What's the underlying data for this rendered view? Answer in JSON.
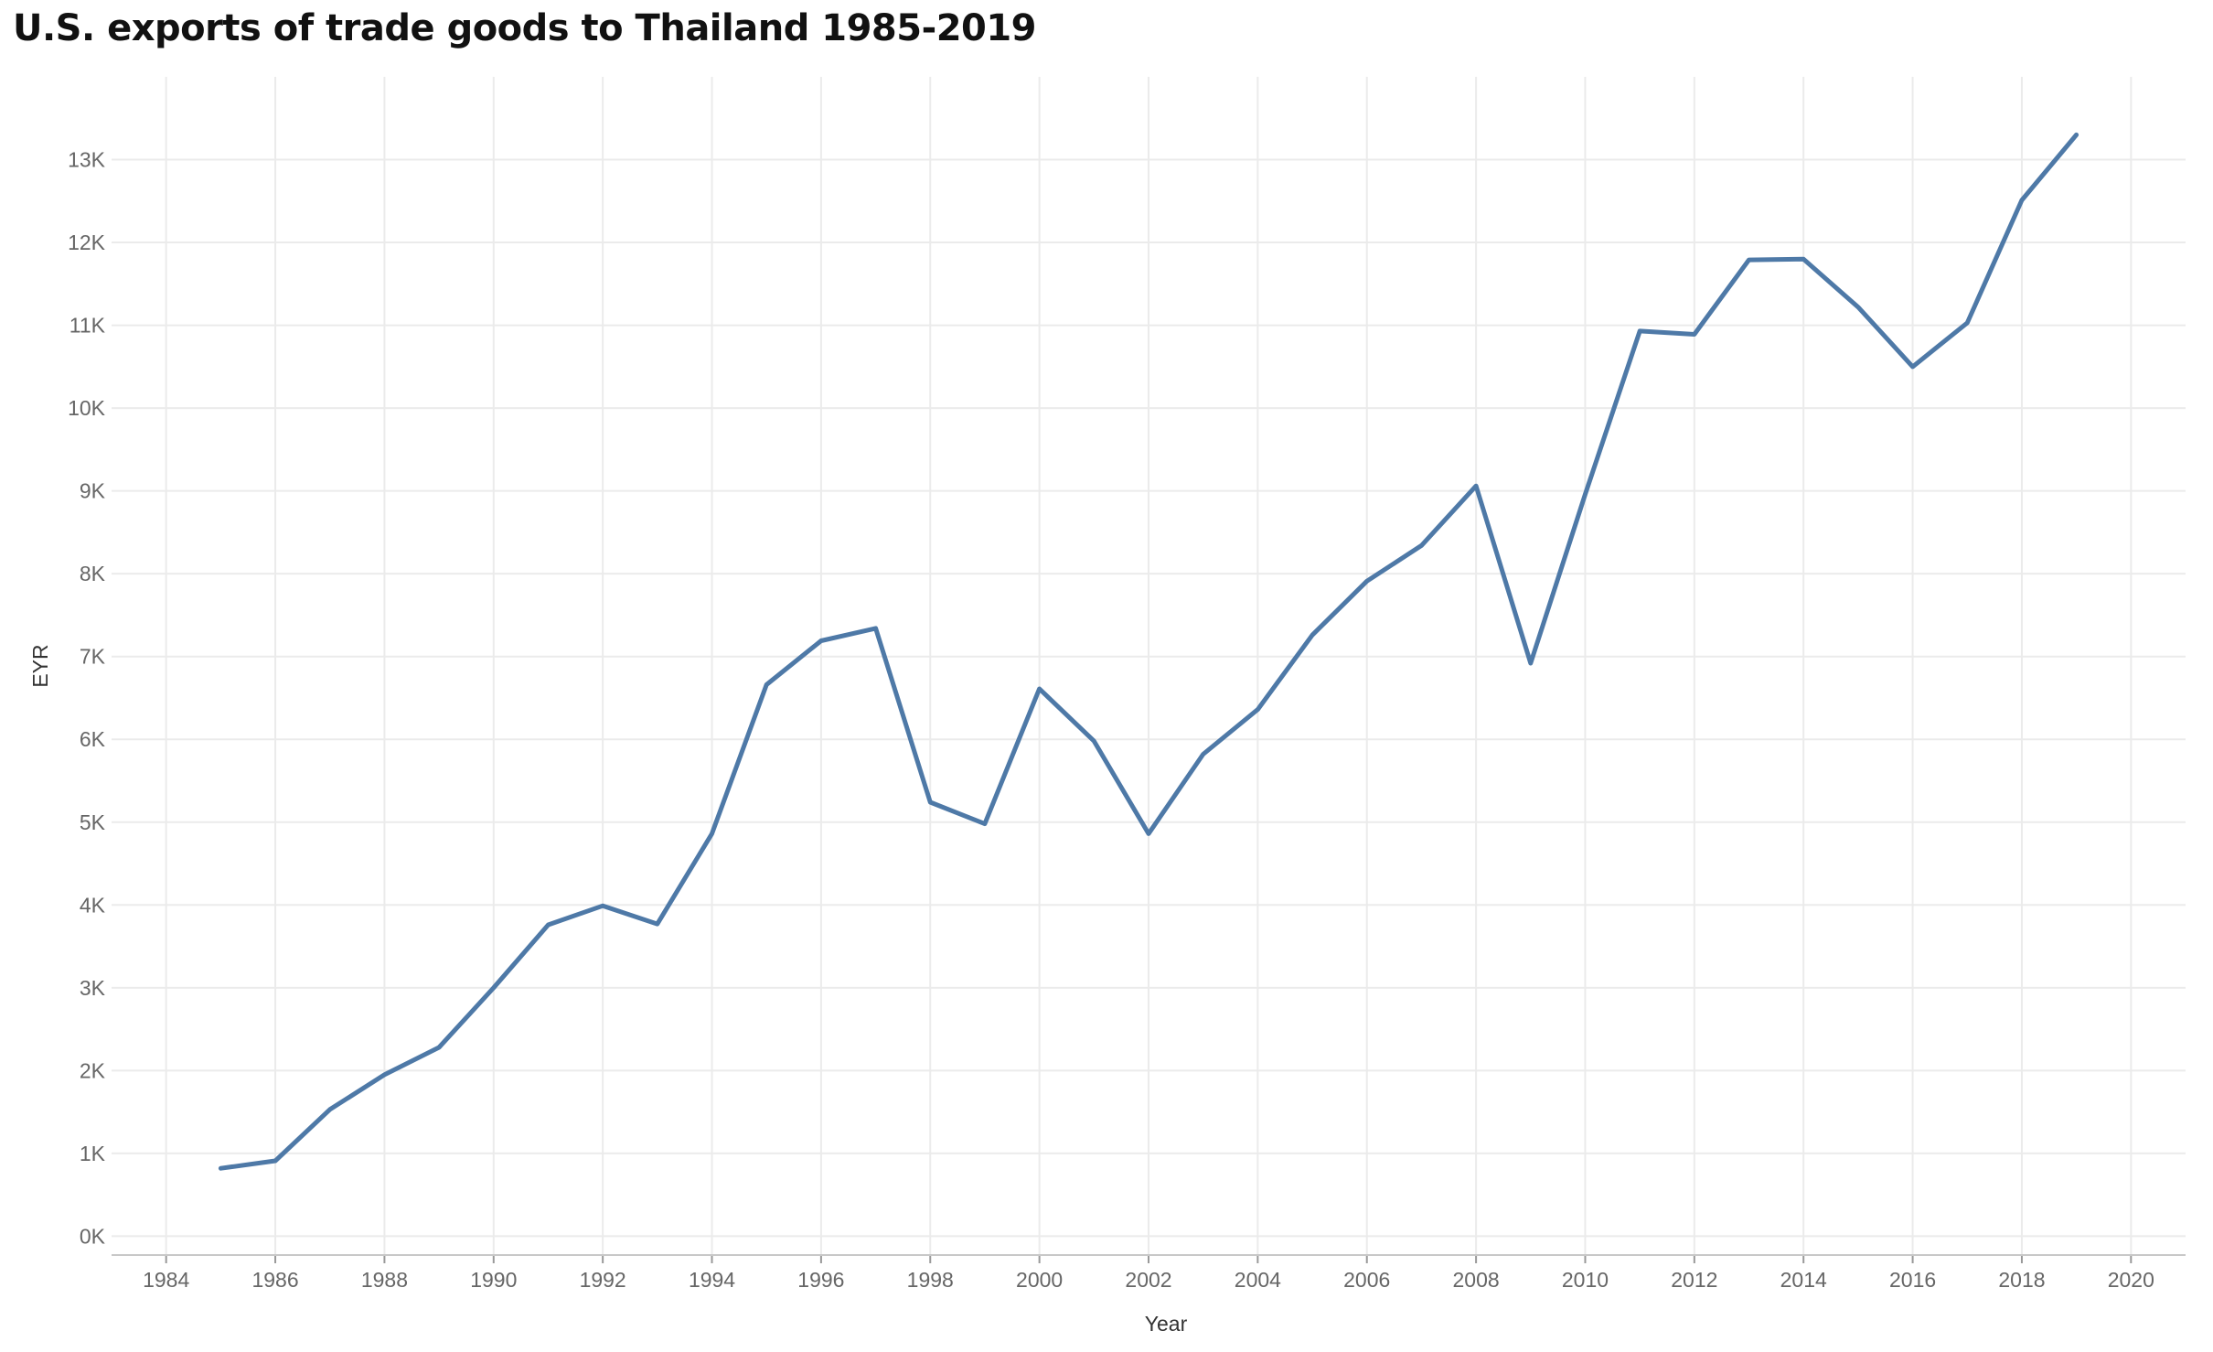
{
  "title": "U.S. exports of trade goods to Thailand 1985-2019",
  "chart_data": {
    "type": "line",
    "title": "U.S. exports of trade goods to Thailand 1985-2019",
    "xlabel": "Year",
    "ylabel": "EYR",
    "x_ticks": [
      "1984",
      "1986",
      "1988",
      "1990",
      "1992",
      "1994",
      "1996",
      "1998",
      "2000",
      "2002",
      "2004",
      "2006",
      "2008",
      "2010",
      "2012",
      "2014",
      "2016",
      "2018",
      "2020"
    ],
    "y_ticks": [
      "0K",
      "1K",
      "2K",
      "3K",
      "4K",
      "5K",
      "6K",
      "7K",
      "8K",
      "9K",
      "10K",
      "11K",
      "12K",
      "13K"
    ],
    "xlim": [
      1983.0,
      2021.0
    ],
    "ylim": [
      -150,
      14000
    ],
    "grid": true,
    "line_color": "#4e79a7",
    "x": [
      1985,
      1986,
      1987,
      1988,
      1989,
      1990,
      1991,
      1992,
      1993,
      1994,
      1995,
      1996,
      1997,
      1998,
      1999,
      2000,
      2001,
      2002,
      2003,
      2004,
      2005,
      2006,
      2007,
      2008,
      2009,
      2010,
      2011,
      2012,
      2013,
      2014,
      2015,
      2016,
      2017,
      2018,
      2019
    ],
    "series": [
      {
        "values": [
          820,
          910,
          1530,
          1950,
          2280,
          3000,
          3760,
          3990,
          3770,
          4860,
          6660,
          7190,
          7340,
          5240,
          4980,
          6610,
          5980,
          4860,
          5820,
          6360,
          7260,
          7910,
          8340,
          9060,
          6920,
          8960,
          10930,
          10890,
          11790,
          11800,
          11220,
          10500,
          11030,
          12510,
          13300
        ]
      }
    ]
  }
}
